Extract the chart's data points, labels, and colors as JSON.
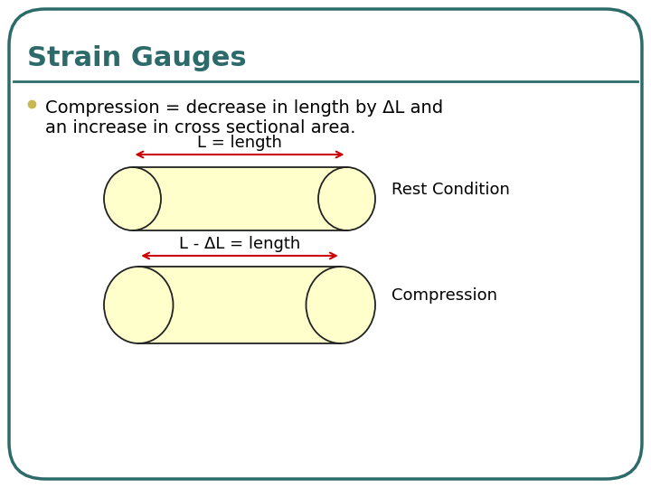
{
  "title": "Strain Gauges",
  "title_color": "#2d6b6b",
  "title_fontsize": 22,
  "bullet_text_line1": "Compression = decrease in length by ΔL and",
  "bullet_text_line2": "an increase in cross sectional area.",
  "bullet_color": "#c8b850",
  "text_fontsize": 14,
  "bg_color": "#ffffff",
  "border_color": "#2d6b6b",
  "line_color": "#2d6b6b",
  "cylinder_fill": "#ffffcc",
  "cylinder_edge": "#222222",
  "arrow_color": "#cc0000",
  "rest_label": "L = length",
  "compress_label": "L - ΔL = length",
  "rest_condition_text": "Rest Condition",
  "compression_text": "Compression"
}
